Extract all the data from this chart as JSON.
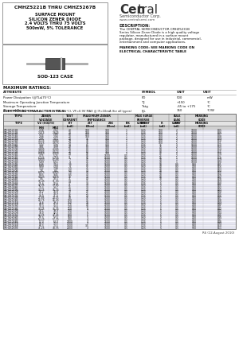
{
  "title_box_text": "CMHZ5221B THRU CMHZ5267B",
  "subtitle_lines": [
    "SURFACE MOUNT",
    "SILICON ZENER DIODE",
    "2.4 VOLTS THRU 75 VOLTS",
    "500mW, 5% TOLERANCE"
  ],
  "company_name_bold": "Cen",
  "company_name_reg": "tral",
  "company_sub": "Semiconductor Corp.",
  "website": "www.centralsemi.com",
  "description_title": "DESCRIPTION:",
  "description_text": "The CENTRAL SEMICONDUCTOR CMHZ5231B\nSeries Silicon Zener Diode is a high quality voltage\nregulator, manufactured in a surface mount\npackage, designed for use in industrial, commercial,\nentertainment and computer applications.",
  "marking_code_text": "MARKING CODE: SEE MARKING CODE ON\nELECTRICAL CHARACTERISTIC TABLE",
  "case": "SOD-123 CASE",
  "max_ratings_title": "MAXIMUM RATINGS:",
  "max_ratings": [
    [
      "Power Dissipation (@TL≤75°C)",
      "PD",
      "500",
      "mW"
    ],
    [
      "Maximum Operating Junction Temperature",
      "TJ",
      "+150",
      "°C"
    ],
    [
      "Storage Temperature",
      "Tstg",
      "-65 to +175",
      "°C"
    ],
    [
      "Thermal Resistance",
      "θJL",
      "150",
      "°C/W"
    ]
  ],
  "elec_char_title": "ELECTRICAL CHARACTERISTICS:",
  "elec_char_subtitle": "(TA=25°C), VF=0.9V MAX @ IF=10mA (for all types)",
  "table_data": [
    [
      "CMHZ5221B",
      "2.28",
      "2.52",
      "20",
      "100",
      "900",
      "1",
      "0.25",
      "100",
      "2",
      "1000",
      "B05"
    ],
    [
      "CMHZ5222B",
      "2.375",
      "2.625",
      "20",
      "100",
      "900",
      "1",
      "0.25",
      "100",
      "2",
      "1000",
      "B06"
    ],
    [
      "CMHZ5223B",
      "2.52",
      "2.88",
      "20",
      "100",
      "900",
      "1",
      "0.25",
      "100",
      "2",
      "1000",
      "B07"
    ],
    [
      "CMHZ5224B",
      "2.66",
      "2.94",
      "20",
      "100",
      "900",
      "1",
      "0.25",
      "100",
      "2",
      "1000",
      "B08"
    ],
    [
      "CMHZ5225B",
      "2.85",
      "3.15",
      "20",
      "95",
      "900",
      "1",
      "0.25",
      "100",
      "2",
      "1000",
      "B09"
    ],
    [
      "CMHZ5226B",
      "3.135",
      "3.465",
      "29",
      "95",
      "900",
      "1",
      "0.25",
      "100",
      "2",
      "1000",
      "B10"
    ],
    [
      "CMHZ5227B",
      "3.325",
      "3.675",
      "29",
      "95",
      "900",
      "1",
      "0.25",
      "100",
      "2",
      "1000",
      "B11"
    ],
    [
      "CMHZ5228B",
      "3.42",
      "3.78",
      "29",
      "85",
      "900",
      "1",
      "0.25",
      "75",
      "2",
      "1000",
      "B12"
    ],
    [
      "CMHZ5229B",
      "3.61",
      "3.99",
      "28",
      "80",
      "900",
      "1",
      "0.25",
      "75",
      "2",
      "1000",
      "B13"
    ],
    [
      "CMHZ5230B",
      "3.895",
      "4.305",
      "24",
      "80",
      "900",
      "1",
      "0.25",
      "50",
      "2",
      "1000",
      "B14"
    ],
    [
      "CMHZ5231B",
      "4.085",
      "4.515",
      "22",
      "80",
      "900",
      "1",
      "0.25",
      "50",
      "2",
      "1000",
      "B15"
    ],
    [
      "CMHZ5232B",
      "4.465",
      "4.935",
      "19",
      "55",
      "900",
      "1",
      "0.25",
      "25",
      "2",
      "1000",
      "B16"
    ],
    [
      "CMHZ5233B",
      "4.75",
      "5.25",
      "17",
      "55",
      "1600",
      "0.5",
      "0.25",
      "25",
      "2",
      "1000",
      "B17"
    ],
    [
      "CMHZ5234B",
      "5.225",
      "5.775",
      "11",
      "55",
      "1600",
      "0.5",
      "0.25",
      "15",
      "1",
      "1000",
      "B18"
    ],
    [
      "CMHZ5235B",
      "5.605",
      "6.195",
      "7",
      "45",
      "1600",
      "0.5",
      "0.25",
      "10",
      "1",
      "1000",
      "B19"
    ],
    [
      "CMHZ5236B",
      "5.89",
      "6.51",
      "4",
      "45",
      "1600",
      "0.5",
      "0.25",
      "10",
      "1",
      "1000",
      "B20"
    ],
    [
      "CMHZ5237B",
      "6.46",
      "7.14",
      "3.5",
      "45",
      "1600",
      "0.5",
      "0.25",
      "10",
      "0.5",
      "500",
      "B21"
    ],
    [
      "CMHZ5238B",
      "6.84",
      "7.56",
      "4",
      "45",
      "1600",
      "0.5",
      "0.25",
      "10",
      "0.5",
      "500",
      "B22"
    ],
    [
      "CMHZ5239B",
      "7.22",
      "7.98",
      "5.5",
      "45",
      "1600",
      "0.5",
      "0.25",
      "10",
      "0.5",
      "500",
      "B23"
    ],
    [
      "CMHZ5240B",
      "7.6",
      "8.4",
      "6.5",
      "40",
      "1600",
      "0.5",
      "0.25",
      "10",
      "0.5",
      "500",
      "B24"
    ],
    [
      "CMHZ5241B",
      "8.075",
      "8.925",
      "7.5",
      "40",
      "1600",
      "0.5",
      "0.25",
      "10",
      "0.5",
      "500",
      "B25"
    ],
    [
      "CMHZ5242B",
      "8.55",
      "9.45",
      "8.5",
      "40",
      "1600",
      "0.5",
      "0.25",
      "10",
      "0.5",
      "500",
      "B26"
    ],
    [
      "CMHZ5243B",
      "9.025",
      "9.975",
      "10",
      "40",
      "1600",
      "0.5",
      "0.25",
      "10",
      "0.5",
      "500",
      "B27"
    ],
    [
      "CMHZ5244B",
      "9.5",
      "10.5",
      "11",
      "40",
      "1600",
      "0.5",
      "0.25",
      "10",
      "0.5",
      "500",
      "B28"
    ],
    [
      "CMHZ5245B",
      "10.45",
      "11.55",
      "14",
      "35",
      "1600",
      "0.5",
      "0.25",
      "5",
      "0.5",
      "500",
      "B29"
    ],
    [
      "CMHZ5246B",
      "11.4",
      "12.6",
      "17",
      "30",
      "1600",
      "0.5",
      "0.25",
      "5",
      "0.5",
      "500",
      "B30"
    ],
    [
      "CMHZ5247B",
      "12.35",
      "13.65",
      "21",
      "30",
      "1600",
      "0.5",
      "0.25",
      "5",
      "0.5",
      "500",
      "B31"
    ],
    [
      "CMHZ5248B",
      "13.3",
      "14.7",
      "25",
      "30",
      "1600",
      "0.5",
      "0.25",
      "5",
      "0.5",
      "500",
      "B32"
    ],
    [
      "CMHZ5249B",
      "14.25",
      "15.75",
      "30",
      "30",
      "1600",
      "0.5",
      "0.25",
      "5",
      "0.5",
      "500",
      "B33"
    ],
    [
      "CMHZ5250B",
      "15.2",
      "16.8",
      "30",
      "25",
      "1600",
      "0.5",
      "0.25",
      "5",
      "0.5",
      "500",
      "B34"
    ],
    [
      "CMHZ5251B",
      "17.1",
      "18.9",
      "45",
      "25",
      "1600",
      "0.5",
      "0.25",
      "5",
      "0.5",
      "500",
      "B35"
    ],
    [
      "CMHZ5252B",
      "19.0",
      "21.0",
      "55",
      "20",
      "1600",
      "0.5",
      "0.25",
      "5",
      "0.5",
      "500",
      "B36"
    ],
    [
      "CMHZ5253B",
      "21.85",
      "24.15",
      "80",
      "15",
      "1600",
      "0.5",
      "0.25",
      "5",
      "0.5",
      "500",
      "B37"
    ],
    [
      "CMHZ5254B",
      "23.75",
      "26.25",
      "100",
      "15",
      "1600",
      "0.5",
      "0.25",
      "5",
      "0.5",
      "500",
      "B38"
    ],
    [
      "CMHZ5255B",
      "26.6",
      "29.4",
      "150",
      "10",
      "1600",
      "0.5",
      "0.25",
      "5",
      "0.5",
      "500",
      "B39"
    ],
    [
      "CMHZ5256B",
      "28.5",
      "31.5",
      "175",
      "10",
      "1600",
      "0.5",
      "0.25",
      "5",
      "0.5",
      "500",
      "B40"
    ],
    [
      "CMHZ5257B",
      "30.4",
      "33.6",
      "200",
      "10",
      "1600",
      "0.5",
      "0.25",
      "5",
      "0.5",
      "500",
      "B41"
    ],
    [
      "CMHZ5258B",
      "33.25",
      "36.75",
      "250",
      "8",
      "1600",
      "0.5",
      "0.25",
      "5",
      "0.5",
      "500",
      "B42"
    ],
    [
      "CMHZ5259B",
      "36.1",
      "39.9",
      "300",
      "7",
      "1600",
      "0.5",
      "0.25",
      "5",
      "0.5",
      "500",
      "B43"
    ],
    [
      "CMHZ5260B",
      "38.0",
      "42.0",
      "350",
      "6",
      "1600",
      "0.5",
      "0.25",
      "5",
      "0.5",
      "500",
      "B44"
    ],
    [
      "CMHZ5261B",
      "42.75",
      "47.25",
      "500",
      "5",
      "1600",
      "0.5",
      "0.25",
      "5",
      "0.5",
      "500",
      "B45"
    ],
    [
      "CMHZ5262B",
      "47.5",
      "52.5",
      "550",
      "5",
      "1600",
      "0.5",
      "0.25",
      "5",
      "0.5",
      "500",
      "B46"
    ],
    [
      "CMHZ5263B",
      "52.25",
      "57.75",
      "700",
      "4",
      "1600",
      "0.5",
      "0.25",
      "5",
      "0.5",
      "500",
      "B47"
    ],
    [
      "CMHZ5264B",
      "57.0",
      "63.0",
      "1000",
      "4",
      "1600",
      "0.5",
      "0.25",
      "5",
      "0.5",
      "500",
      "B48"
    ],
    [
      "CMHZ5265B",
      "66.5",
      "73.5",
      "1500",
      "3",
      "1600",
      "0.5",
      "0.25",
      "5",
      "0.5",
      "500",
      "B49"
    ],
    [
      "CMHZ5266B",
      "66.5",
      "73.5",
      "1500",
      "3.5",
      "1600",
      "0.5",
      "0.25",
      "5",
      "0.5",
      "500",
      "B50"
    ],
    [
      "CMHZ5267B",
      "71.25",
      "78.75",
      "2000",
      "3",
      "1600",
      "0.5",
      "0.25",
      "5",
      "0.5",
      "500",
      "B51"
    ]
  ],
  "bg_color": "#ffffff",
  "revision": "R6 (12-August 2010)"
}
